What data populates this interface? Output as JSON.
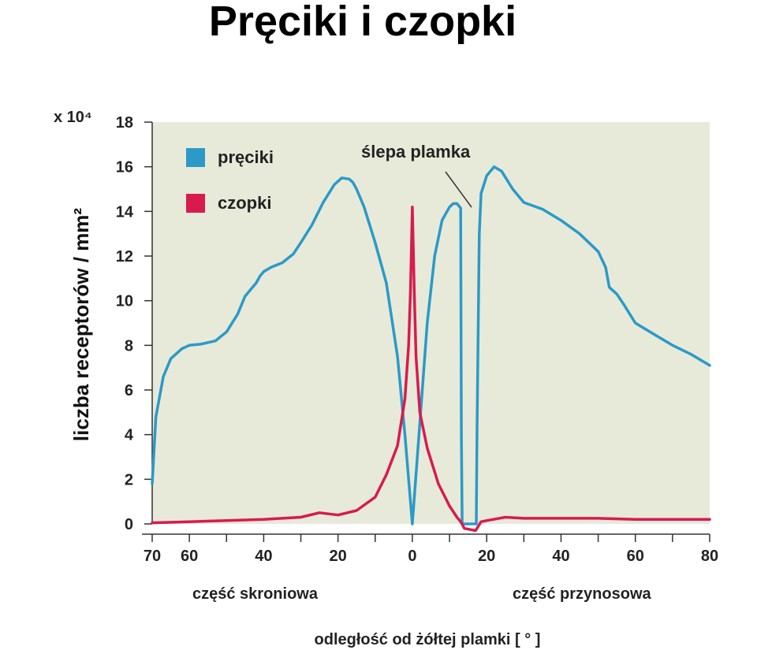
{
  "title": "Pręciki i czopki",
  "chart_data": {
    "type": "line",
    "ylabel": "liczba receptorów / mm²",
    "y_multiplier": "x 10⁴",
    "xlabel": "odległość od żółtej plamki [ ° ]",
    "x_tick_labels": [
      "70",
      "60",
      "40",
      "20",
      "0",
      "20",
      "40",
      "60",
      "80"
    ],
    "y_tick_labels": [
      "0",
      "2",
      "4",
      "6",
      "8",
      "10",
      "12",
      "14",
      "16",
      "18"
    ],
    "region_labels": {
      "left": "część skroniowa",
      "right": "część przynosowa"
    },
    "annotation": "ślepa plamka",
    "ylim": [
      0,
      18
    ],
    "xlim": [
      -70,
      80
    ],
    "grid": false,
    "legend_position": "top-left",
    "colors": {
      "rods": "#2b9ac8",
      "cones": "#d81b4e",
      "plot_bg": "#e8ead9"
    },
    "series": [
      {
        "name": "pręciki",
        "x": [
          -70,
          -69,
          -67,
          -65,
          -62,
          -60,
          -57,
          -53,
          -50,
          -47,
          -45,
          -42,
          -41,
          -40,
          -38,
          -35,
          -32,
          -30,
          -27,
          -24,
          -21,
          -19,
          -17,
          -16,
          -15,
          -13,
          -10,
          -7,
          -4,
          -2,
          0,
          2,
          4,
          6,
          8,
          10,
          11,
          12,
          13,
          13.2,
          13.4,
          17.2,
          17.4,
          18,
          18.5,
          20,
          22,
          24,
          27,
          30,
          35,
          40,
          45,
          50,
          52,
          53,
          55,
          57,
          60,
          65,
          70,
          75,
          80
        ],
        "values": [
          1.8,
          4.8,
          6.6,
          7.4,
          7.85,
          8.0,
          8.05,
          8.2,
          8.6,
          9.4,
          10.2,
          10.8,
          11.1,
          11.3,
          11.5,
          11.7,
          12.1,
          12.6,
          13.4,
          14.4,
          15.2,
          15.5,
          15.45,
          15.3,
          15.0,
          14.2,
          12.6,
          10.8,
          7.5,
          4.0,
          0,
          4.5,
          9.0,
          12.0,
          13.6,
          14.2,
          14.35,
          14.35,
          14.15,
          4.0,
          0,
          0,
          4.0,
          13.0,
          14.8,
          15.6,
          16.0,
          15.8,
          15.0,
          14.4,
          14.1,
          13.6,
          13.0,
          12.2,
          11.5,
          10.6,
          10.3,
          9.8,
          9.0,
          8.5,
          8.0,
          7.6,
          7.1
        ]
      },
      {
        "name": "czopki",
        "x": [
          -70,
          -60,
          -50,
          -40,
          -30,
          -25,
          -20,
          -15,
          -10,
          -7,
          -4,
          -2,
          -1,
          -0.5,
          0,
          0.5,
          1,
          2,
          4,
          7,
          10,
          12,
          13,
          14,
          17,
          18.5,
          20,
          25,
          30,
          40,
          50,
          60,
          70,
          80
        ],
        "values": [
          0.05,
          0.1,
          0.15,
          0.2,
          0.3,
          0.5,
          0.4,
          0.6,
          1.2,
          2.2,
          3.5,
          5.6,
          8.0,
          10.5,
          14.2,
          10.5,
          7.5,
          5.0,
          3.4,
          1.8,
          0.8,
          0.3,
          0.1,
          -0.2,
          -0.3,
          0.1,
          0.15,
          0.3,
          0.25,
          0.25,
          0.25,
          0.2,
          0.2,
          0.2
        ]
      }
    ]
  }
}
